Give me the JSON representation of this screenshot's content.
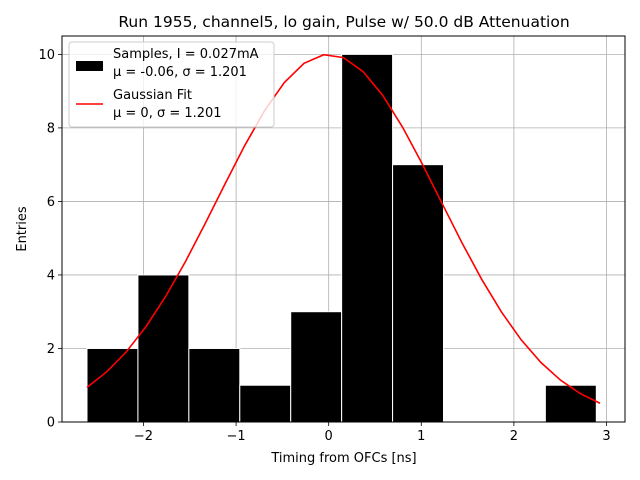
{
  "chart_data": {
    "type": "bar",
    "title": "Run 1955, channel5, lo gain, Pulse w/ 50.0 dB Attenuation",
    "xlabel": "Timing from OFCs [ns]",
    "ylabel": "Entries",
    "xlim": [
      -2.88,
      3.2
    ],
    "ylim": [
      0,
      10.5
    ],
    "xticks": [
      -2,
      -1,
      0,
      1,
      2,
      3
    ],
    "xtick_labels": [
      "−2",
      "−1",
      "0",
      "1",
      "2",
      "3"
    ],
    "yticks": [
      0,
      2,
      4,
      6,
      8,
      10
    ],
    "ytick_labels": [
      "0",
      "2",
      "4",
      "6",
      "8",
      "10"
    ],
    "grid": true,
    "bar_color": "#000000",
    "bar_edge_color": "#ffffff",
    "fit_color": "#ff0000",
    "histogram": {
      "name": "Samples",
      "bins": [
        {
          "x0": -2.61,
          "x1": -2.06,
          "count": 2
        },
        {
          "x0": -2.06,
          "x1": -1.51,
          "count": 4
        },
        {
          "x0": -1.51,
          "x1": -0.96,
          "count": 2
        },
        {
          "x0": -0.96,
          "x1": -0.41,
          "count": 1
        },
        {
          "x0": -0.41,
          "x1": 0.14,
          "count": 3
        },
        {
          "x0": 0.14,
          "x1": 0.69,
          "count": 10
        },
        {
          "x0": 0.69,
          "x1": 1.24,
          "count": 7
        },
        {
          "x0": 1.24,
          "x1": 1.79,
          "count": 0
        },
        {
          "x0": 1.79,
          "x1": 2.34,
          "count": 0
        },
        {
          "x0": 2.34,
          "x1": 2.89,
          "count": 1
        }
      ]
    },
    "fit": {
      "name": "Gaussian Fit",
      "mu": 0,
      "sigma": 1.201,
      "amplitude": 10,
      "x_range": [
        -2.61,
        2.93
      ],
      "points": 27
    },
    "legend": {
      "position": "top-left",
      "entries": [
        {
          "kind": "bar",
          "line1": "Samples, I = 0.027mA",
          "line2": "μ = -0.06, σ = 1.201"
        },
        {
          "kind": "line",
          "line1": "Gaussian Fit",
          "line2": "μ = 0, σ = 1.201"
        }
      ]
    }
  }
}
